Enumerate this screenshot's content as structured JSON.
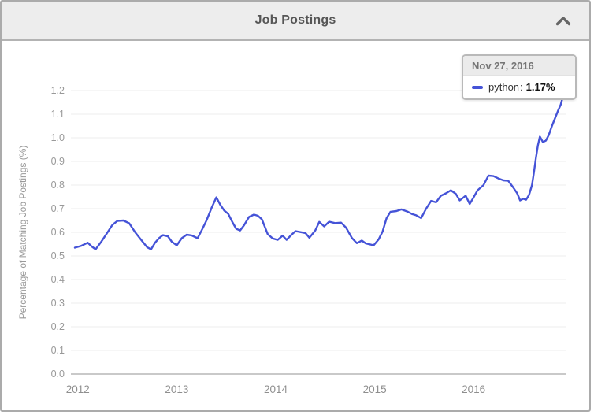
{
  "panel": {
    "title": "Job Postings",
    "collapse_icon": "chevron-up-icon"
  },
  "tooltip": {
    "date": "Nov 27, 2016",
    "series": "python",
    "separator": ":",
    "value": "1.17%",
    "marker_color": "#4553d7"
  },
  "colors": {
    "line": "#4553d7",
    "grid": "#ececec",
    "baseline": "#c9c9c9",
    "tick_label": "#999999",
    "x_label": "#8e8e8e",
    "header_bg": "#ededed",
    "border": "#ababab"
  },
  "chart_data": {
    "type": "line",
    "title": "Job Postings",
    "xlabel": "",
    "ylabel": "Percentage of Matching Job Postings (%)",
    "x_ticks": [
      "2012",
      "2013",
      "2014",
      "2015",
      "2016"
    ],
    "y_ticks": [
      "0.0",
      "0.1",
      "0.2",
      "0.3",
      "0.4",
      "0.5",
      "0.6",
      "0.7",
      "0.8",
      "0.9",
      "1.0",
      "1.1",
      "1.2"
    ],
    "xlim": [
      2011.93,
      2016.93
    ],
    "ylim": [
      0,
      1.2
    ],
    "grid": "horizontal",
    "legend_position": "tooltip",
    "highlight": {
      "date": "Nov 27, 2016",
      "series": "python",
      "value_pct": 1.17
    },
    "series": [
      {
        "name": "python",
        "color": "#4553d7",
        "points": [
          [
            2011.97,
            0.535
          ],
          [
            2012.03,
            0.542
          ],
          [
            2012.1,
            0.556
          ],
          [
            2012.14,
            0.54
          ],
          [
            2012.18,
            0.528
          ],
          [
            2012.24,
            0.562
          ],
          [
            2012.3,
            0.6
          ],
          [
            2012.35,
            0.632
          ],
          [
            2012.4,
            0.648
          ],
          [
            2012.46,
            0.65
          ],
          [
            2012.52,
            0.638
          ],
          [
            2012.58,
            0.6
          ],
          [
            2012.64,
            0.568
          ],
          [
            2012.7,
            0.537
          ],
          [
            2012.74,
            0.528
          ],
          [
            2012.78,
            0.556
          ],
          [
            2012.82,
            0.575
          ],
          [
            2012.86,
            0.588
          ],
          [
            2012.91,
            0.583
          ],
          [
            2012.95,
            0.56
          ],
          [
            2013.0,
            0.545
          ],
          [
            2013.05,
            0.575
          ],
          [
            2013.1,
            0.59
          ],
          [
            2013.15,
            0.587
          ],
          [
            2013.21,
            0.575
          ],
          [
            2013.26,
            0.615
          ],
          [
            2013.3,
            0.65
          ],
          [
            2013.35,
            0.702
          ],
          [
            2013.4,
            0.748
          ],
          [
            2013.44,
            0.716
          ],
          [
            2013.48,
            0.692
          ],
          [
            2013.52,
            0.678
          ],
          [
            2013.56,
            0.645
          ],
          [
            2013.6,
            0.615
          ],
          [
            2013.64,
            0.608
          ],
          [
            2013.68,
            0.63
          ],
          [
            2013.73,
            0.665
          ],
          [
            2013.78,
            0.675
          ],
          [
            2013.82,
            0.67
          ],
          [
            2013.86,
            0.655
          ],
          [
            2013.92,
            0.592
          ],
          [
            2013.97,
            0.574
          ],
          [
            2014.02,
            0.568
          ],
          [
            2014.07,
            0.586
          ],
          [
            2014.11,
            0.568
          ],
          [
            2014.16,
            0.59
          ],
          [
            2014.2,
            0.605
          ],
          [
            2014.25,
            0.601
          ],
          [
            2014.3,
            0.597
          ],
          [
            2014.34,
            0.577
          ],
          [
            2014.4,
            0.608
          ],
          [
            2014.44,
            0.644
          ],
          [
            2014.49,
            0.625
          ],
          [
            2014.54,
            0.645
          ],
          [
            2014.6,
            0.639
          ],
          [
            2014.66,
            0.641
          ],
          [
            2014.71,
            0.62
          ],
          [
            2014.77,
            0.576
          ],
          [
            2014.82,
            0.554
          ],
          [
            2014.87,
            0.565
          ],
          [
            2014.91,
            0.553
          ],
          [
            2014.99,
            0.545
          ],
          [
            2015.04,
            0.57
          ],
          [
            2015.08,
            0.603
          ],
          [
            2015.12,
            0.66
          ],
          [
            2015.16,
            0.687
          ],
          [
            2015.22,
            0.69
          ],
          [
            2015.27,
            0.697
          ],
          [
            2015.33,
            0.688
          ],
          [
            2015.38,
            0.677
          ],
          [
            2015.42,
            0.672
          ],
          [
            2015.47,
            0.66
          ],
          [
            2015.52,
            0.7
          ],
          [
            2015.57,
            0.733
          ],
          [
            2015.62,
            0.727
          ],
          [
            2015.67,
            0.755
          ],
          [
            2015.72,
            0.765
          ],
          [
            2015.77,
            0.778
          ],
          [
            2015.82,
            0.763
          ],
          [
            2015.86,
            0.735
          ],
          [
            2015.92,
            0.755
          ],
          [
            2015.96,
            0.72
          ],
          [
            2016.0,
            0.748
          ],
          [
            2016.04,
            0.778
          ],
          [
            2016.1,
            0.8
          ],
          [
            2016.15,
            0.84
          ],
          [
            2016.2,
            0.838
          ],
          [
            2016.25,
            0.828
          ],
          [
            2016.3,
            0.82
          ],
          [
            2016.35,
            0.818
          ],
          [
            2016.4,
            0.79
          ],
          [
            2016.44,
            0.765
          ],
          [
            2016.47,
            0.735
          ],
          [
            2016.5,
            0.742
          ],
          [
            2016.53,
            0.738
          ],
          [
            2016.56,
            0.758
          ],
          [
            2016.59,
            0.8
          ],
          [
            2016.61,
            0.855
          ],
          [
            2016.63,
            0.915
          ],
          [
            2016.65,
            0.968
          ],
          [
            2016.67,
            1.005
          ],
          [
            2016.7,
            0.982
          ],
          [
            2016.73,
            0.988
          ],
          [
            2016.76,
            1.012
          ],
          [
            2016.79,
            1.048
          ],
          [
            2016.82,
            1.08
          ],
          [
            2016.85,
            1.112
          ],
          [
            2016.88,
            1.14
          ],
          [
            2016.9,
            1.17
          ]
        ]
      }
    ]
  }
}
